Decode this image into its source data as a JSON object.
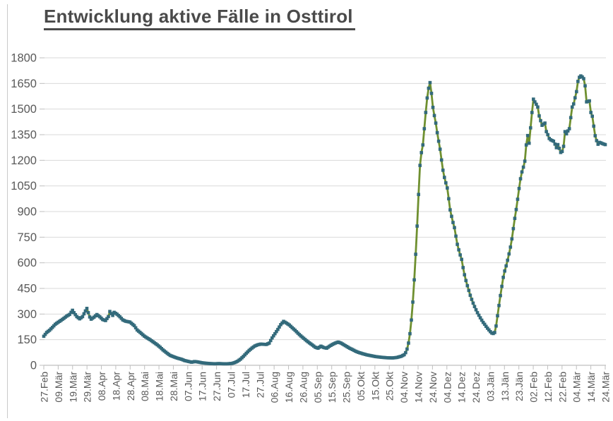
{
  "title": "Entwicklung aktive Fälle in Osttirol",
  "colors": {
    "background": "#ffffff",
    "title_text": "#4a4a4a",
    "axis_text": "#595959",
    "gridline": "#d9d9d9",
    "axis_line": "#bfbfbf",
    "series_line": "#6f9030",
    "series_marker": "#336a7b",
    "page_edge": "#c9c9c9"
  },
  "chart_data": {
    "type": "line",
    "title": "Entwicklung aktive Fälle in Osttirol",
    "xlabel": "",
    "ylabel": "",
    "ylim": [
      0,
      1800
    ],
    "y_ticks": [
      0,
      150,
      300,
      450,
      600,
      750,
      900,
      1050,
      1200,
      1350,
      1500,
      1650,
      1800
    ],
    "grid": true,
    "legend": false,
    "marker_shape": "square",
    "x_tick_labels": [
      "27.Feb",
      "09.Mär",
      "19.Mär",
      "29.Mär",
      "08.Apr",
      "18.Apr",
      "28.Apr",
      "08.Mai",
      "18.Mai",
      "28.Mai",
      "07.Jun",
      "17.Jun",
      "27.Jun",
      "07.Jul",
      "17.Jul",
      "27.Jul",
      "06.Aug",
      "16.Aug",
      "26.Aug",
      "05.Sep",
      "15.Sep",
      "25.Sep",
      "05.Okt",
      "15.Okt",
      "25.Okt",
      "04.Nov",
      "14.Nov",
      "24.Nov",
      "04.Dez",
      "14.Dez",
      "24.Dez",
      "03.Jän",
      "13.Jän",
      "23.Jän",
      "02.Feb",
      "12.Feb",
      "22.Feb",
      "04.Mär",
      "14.Mär",
      "24.Mär"
    ],
    "x_days_total": 391,
    "series": [
      {
        "name": "aktive Fälle",
        "sampling": "daily points rendered; values linearly interpolated between keypoints [day_index, active_cases]",
        "keypoints": [
          [
            0,
            170
          ],
          [
            2,
            192
          ],
          [
            4,
            205
          ],
          [
            6,
            222
          ],
          [
            8,
            240
          ],
          [
            10,
            252
          ],
          [
            12,
            263
          ],
          [
            14,
            275
          ],
          [
            16,
            288
          ],
          [
            18,
            298
          ],
          [
            20,
            322
          ],
          [
            21,
            308
          ],
          [
            23,
            285
          ],
          [
            25,
            272
          ],
          [
            27,
            285
          ],
          [
            29,
            318
          ],
          [
            30,
            333
          ],
          [
            31,
            308
          ],
          [
            32,
            283
          ],
          [
            33,
            270
          ],
          [
            35,
            282
          ],
          [
            37,
            297
          ],
          [
            39,
            284
          ],
          [
            41,
            268
          ],
          [
            43,
            262
          ],
          [
            45,
            285
          ],
          [
            46,
            315
          ],
          [
            47,
            303
          ],
          [
            48,
            292
          ],
          [
            49,
            310
          ],
          [
            51,
            299
          ],
          [
            53,
            284
          ],
          [
            55,
            266
          ],
          [
            57,
            258
          ],
          [
            60,
            253
          ],
          [
            63,
            232
          ],
          [
            65,
            207
          ],
          [
            68,
            186
          ],
          [
            70,
            171
          ],
          [
            72,
            160
          ],
          [
            74,
            150
          ],
          [
            77,
            132
          ],
          [
            79,
            120
          ],
          [
            81,
            106
          ],
          [
            83,
            90
          ],
          [
            86,
            70
          ],
          [
            88,
            58
          ],
          [
            91,
            48
          ],
          [
            93,
            42
          ],
          [
            96,
            35
          ],
          [
            98,
            28
          ],
          [
            101,
            22
          ],
          [
            103,
            18
          ],
          [
            105,
            22
          ],
          [
            107,
            20
          ],
          [
            110,
            15
          ],
          [
            113,
            12
          ],
          [
            116,
            10
          ],
          [
            119,
            9
          ],
          [
            122,
            10
          ],
          [
            125,
            9
          ],
          [
            128,
            9
          ],
          [
            131,
            11
          ],
          [
            133,
            16
          ],
          [
            135,
            24
          ],
          [
            137,
            36
          ],
          [
            139,
            52
          ],
          [
            141,
            70
          ],
          [
            143,
            87
          ],
          [
            145,
            101
          ],
          [
            147,
            113
          ],
          [
            149,
            120
          ],
          [
            151,
            124
          ],
          [
            153,
            123
          ],
          [
            155,
            122
          ],
          [
            157,
            130
          ],
          [
            159,
            160
          ],
          [
            161,
            185
          ],
          [
            163,
            210
          ],
          [
            165,
            238
          ],
          [
            167,
            257
          ],
          [
            169,
            247
          ],
          [
            171,
            236
          ],
          [
            173,
            220
          ],
          [
            175,
            205
          ],
          [
            177,
            188
          ],
          [
            179,
            172
          ],
          [
            181,
            158
          ],
          [
            183,
            144
          ],
          [
            185,
            131
          ],
          [
            187,
            119
          ],
          [
            189,
            106
          ],
          [
            191,
            100
          ],
          [
            193,
            112
          ],
          [
            195,
            104
          ],
          [
            197,
            100
          ],
          [
            199,
            112
          ],
          [
            201,
            122
          ],
          [
            203,
            130
          ],
          [
            205,
            136
          ],
          [
            207,
            130
          ],
          [
            209,
            120
          ],
          [
            211,
            110
          ],
          [
            213,
            100
          ],
          [
            215,
            92
          ],
          [
            217,
            83
          ],
          [
            219,
            76
          ],
          [
            222,
            68
          ],
          [
            225,
            61
          ],
          [
            228,
            56
          ],
          [
            231,
            51
          ],
          [
            235,
            47
          ],
          [
            239,
            44
          ],
          [
            243,
            43
          ],
          [
            246,
            46
          ],
          [
            249,
            53
          ],
          [
            251,
            62
          ],
          [
            252,
            74
          ],
          [
            253,
            95
          ],
          [
            254,
            130
          ],
          [
            255,
            185
          ],
          [
            256,
            265
          ],
          [
            257,
            370
          ],
          [
            258,
            500
          ],
          [
            259,
            650
          ],
          [
            260,
            815
          ],
          [
            261,
            1000
          ],
          [
            262,
            1170
          ],
          [
            263,
            1245
          ],
          [
            264,
            1290
          ],
          [
            265,
            1385
          ],
          [
            266,
            1480
          ],
          [
            267,
            1565
          ],
          [
            268,
            1622
          ],
          [
            269,
            1655
          ],
          [
            270,
            1592
          ],
          [
            271,
            1510
          ],
          [
            272,
            1462
          ],
          [
            273,
            1418
          ],
          [
            274,
            1362
          ],
          [
            275,
            1312
          ],
          [
            276,
            1265
          ],
          [
            277,
            1202
          ],
          [
            278,
            1142
          ],
          [
            279,
            1100
          ],
          [
            280,
            1068
          ],
          [
            281,
            1038
          ],
          [
            282,
            975
          ],
          [
            283,
            910
          ],
          [
            284,
            872
          ],
          [
            285,
            836
          ],
          [
            286,
            806
          ],
          [
            287,
            756
          ],
          [
            288,
            708
          ],
          [
            289,
            676
          ],
          [
            290,
            646
          ],
          [
            291,
            620
          ],
          [
            292,
            572
          ],
          [
            293,
            530
          ],
          [
            294,
            496
          ],
          [
            295,
            466
          ],
          [
            296,
            438
          ],
          [
            297,
            410
          ],
          [
            298,
            386
          ],
          [
            299,
            364
          ],
          [
            300,
            344
          ],
          [
            301,
            325
          ],
          [
            302,
            308
          ],
          [
            303,
            293
          ],
          [
            304,
            278
          ],
          [
            305,
            264
          ],
          [
            306,
            251
          ],
          [
            307,
            240
          ],
          [
            308,
            228
          ],
          [
            309,
            217
          ],
          [
            310,
            207
          ],
          [
            311,
            197
          ],
          [
            312,
            189
          ],
          [
            313,
            186
          ],
          [
            314,
            192
          ],
          [
            315,
            230
          ],
          [
            316,
            290
          ],
          [
            317,
            350
          ],
          [
            318,
            408
          ],
          [
            319,
            462
          ],
          [
            320,
            515
          ],
          [
            321,
            552
          ],
          [
            322,
            582
          ],
          [
            323,
            615
          ],
          [
            324,
            652
          ],
          [
            325,
            692
          ],
          [
            326,
            740
          ],
          [
            327,
            800
          ],
          [
            328,
            860
          ],
          [
            329,
            912
          ],
          [
            330,
            972
          ],
          [
            331,
            1035
          ],
          [
            332,
            1092
          ],
          [
            333,
            1132
          ],
          [
            334,
            1160
          ],
          [
            335,
            1195
          ],
          [
            336,
            1290
          ],
          [
            337,
            1345
          ],
          [
            338,
            1300
          ],
          [
            339,
            1390
          ],
          [
            340,
            1480
          ],
          [
            341,
            1558
          ],
          [
            342,
            1542
          ],
          [
            343,
            1528
          ],
          [
            344,
            1512
          ],
          [
            345,
            1460
          ],
          [
            346,
            1432
          ],
          [
            347,
            1405
          ],
          [
            348,
            1412
          ],
          [
            349,
            1418
          ],
          [
            350,
            1368
          ],
          [
            351,
            1350
          ],
          [
            352,
            1328
          ],
          [
            353,
            1320
          ],
          [
            354,
            1316
          ],
          [
            355,
            1312
          ],
          [
            356,
            1295
          ],
          [
            357,
            1274
          ],
          [
            358,
            1292
          ],
          [
            359,
            1270
          ],
          [
            360,
            1246
          ],
          [
            361,
            1252
          ],
          [
            362,
            1282
          ],
          [
            363,
            1368
          ],
          [
            364,
            1355
          ],
          [
            365,
            1372
          ],
          [
            366,
            1385
          ],
          [
            367,
            1450
          ],
          [
            368,
            1512
          ],
          [
            369,
            1530
          ],
          [
            370,
            1566
          ],
          [
            371,
            1602
          ],
          [
            372,
            1662
          ],
          [
            373,
            1686
          ],
          [
            374,
            1694
          ],
          [
            375,
            1688
          ],
          [
            376,
            1678
          ],
          [
            377,
            1636
          ],
          [
            378,
            1542
          ],
          [
            379,
            1545
          ],
          [
            380,
            1548
          ],
          [
            381,
            1480
          ],
          [
            382,
            1458
          ],
          [
            383,
            1400
          ],
          [
            384,
            1344
          ],
          [
            385,
            1315
          ],
          [
            386,
            1294
          ],
          [
            387,
            1305
          ],
          [
            388,
            1302
          ],
          [
            389,
            1298
          ],
          [
            390,
            1295
          ],
          [
            391,
            1292
          ]
        ]
      }
    ]
  }
}
